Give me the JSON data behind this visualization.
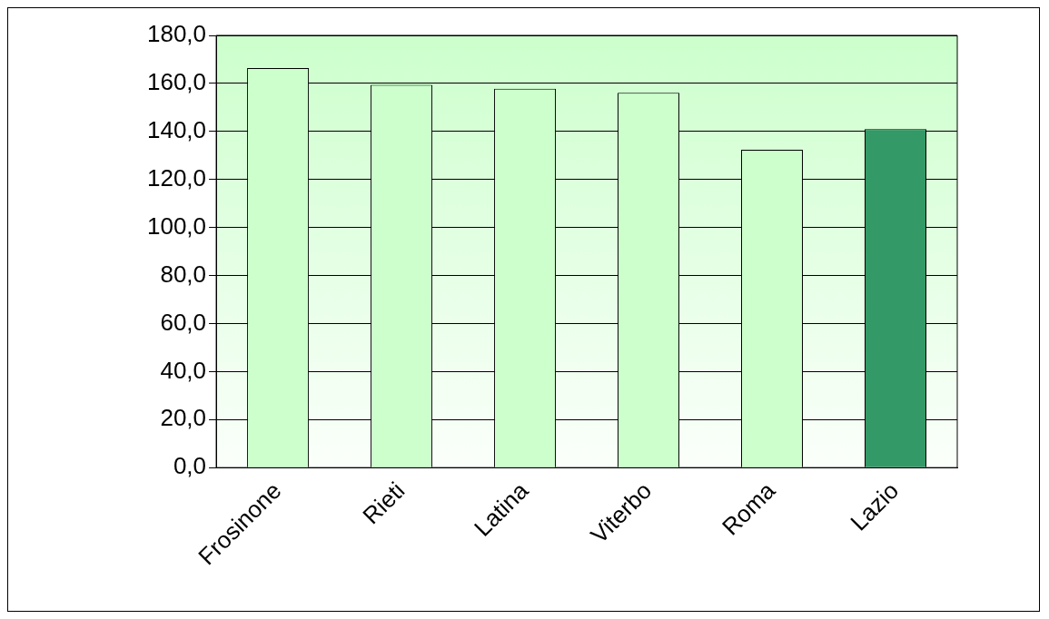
{
  "chart_data": {
    "type": "bar",
    "categories": [
      "Frosinone",
      "Rieti",
      "Latina",
      "Viterbo",
      "Roma",
      "Lazio"
    ],
    "values": [
      166.4,
      159.4,
      157.8,
      156.1,
      132.4,
      141.0
    ],
    "colors": [
      "#ccffcc",
      "#ccffcc",
      "#ccffcc",
      "#ccffcc",
      "#ccffcc",
      "#339966"
    ],
    "ylim": [
      0,
      180
    ],
    "yticks": [
      {
        "value": 0,
        "label": "0,0"
      },
      {
        "value": 20,
        "label": "20,0"
      },
      {
        "value": 40,
        "label": "40,0"
      },
      {
        "value": 60,
        "label": "60,0"
      },
      {
        "value": 80,
        "label": "80,0"
      },
      {
        "value": 100,
        "label": "100,0"
      },
      {
        "value": 120,
        "label": "120,0"
      },
      {
        "value": 140,
        "label": "140,0"
      },
      {
        "value": 160,
        "label": "160,0"
      },
      {
        "value": 180,
        "label": "180,0"
      }
    ],
    "grid": "y",
    "legend": false
  }
}
